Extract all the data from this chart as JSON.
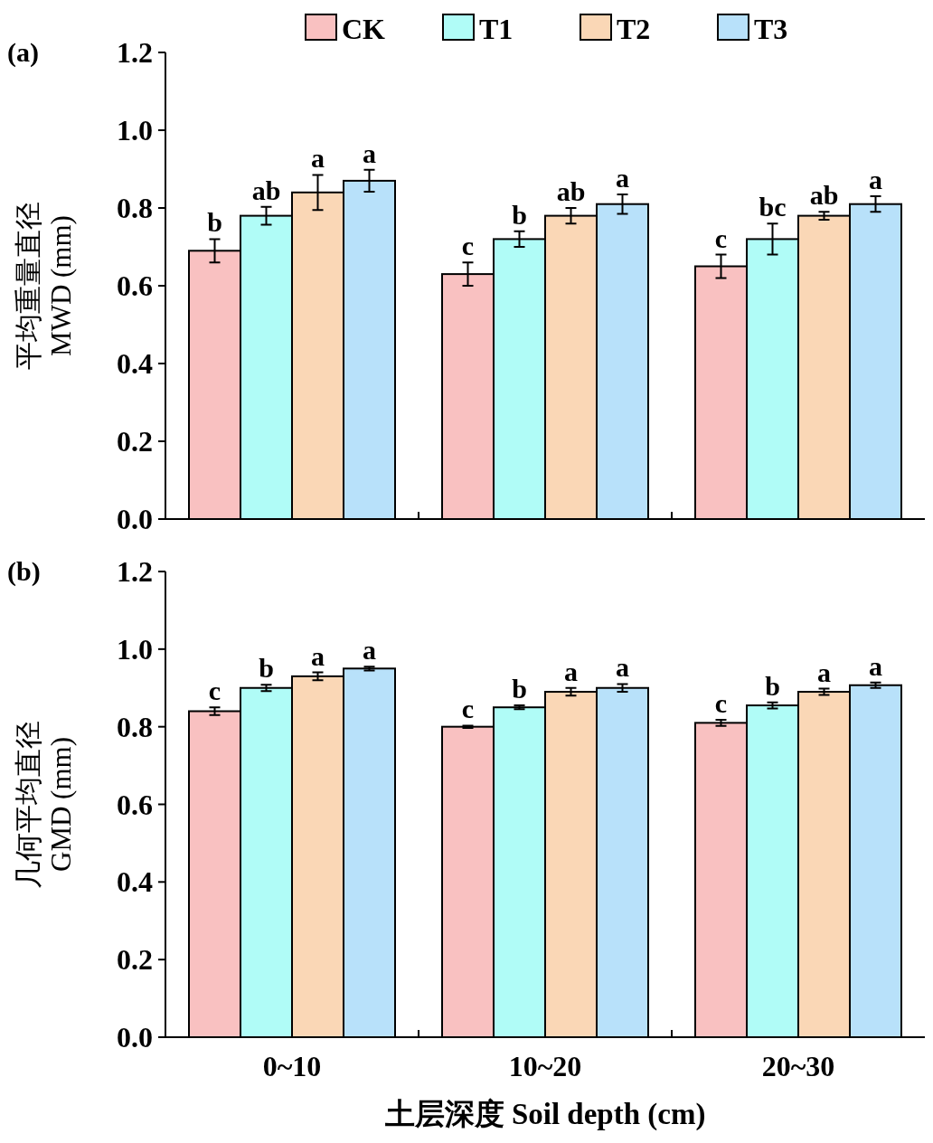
{
  "chart_data": [
    {
      "type": "bar",
      "title": "(a)",
      "ylabel": "平均重量直径 MWD (mm)",
      "ylim": [
        0,
        1.2
      ],
      "yticks": [
        {
          "value": 0,
          "label": "0.0"
        },
        {
          "value": 0.2,
          "label": "0.2"
        },
        {
          "value": 0.4,
          "label": "0.4"
        },
        {
          "value": 0.6,
          "label": "0.6"
        },
        {
          "value": 0.8,
          "label": "0.8"
        },
        {
          "value": 1.0,
          "label": "1.0"
        },
        {
          "value": 1.2,
          "label": "1.2"
        }
      ],
      "legend": "top",
      "tick_labels": "y",
      "series": [
        {
          "name": "CK",
          "color": "#f9c1c1",
          "values": [
            0.69,
            0.63,
            0.65
          ],
          "errors": [
            0.03,
            0.03,
            0.03
          ],
          "value_labels": [
            "b",
            "c",
            "c"
          ]
        },
        {
          "name": "T1",
          "color": "#b0fcf7",
          "values": [
            0.78,
            0.72,
            0.72
          ],
          "errors": [
            0.023,
            0.02,
            0.04
          ],
          "value_labels": [
            "ab",
            "b",
            "bc"
          ]
        },
        {
          "name": "T2",
          "color": "#fad7b6",
          "values": [
            0.84,
            0.78,
            0.78
          ],
          "errors": [
            0.045,
            0.02,
            0.01
          ],
          "value_labels": [
            "a",
            "ab",
            "ab"
          ]
        },
        {
          "name": "T3",
          "color": "#b8e1fa",
          "values": [
            0.87,
            0.81,
            0.81
          ],
          "errors": [
            0.028,
            0.025,
            0.02
          ],
          "value_labels": [
            "a",
            "a",
            "a"
          ]
        }
      ]
    },
    {
      "type": "bar",
      "title": "(b)",
      "ylabel": "几何平均直径 GMD (mm)",
      "xlabel": "土层深度 Soil depth (cm)",
      "categories": [
        "0~10",
        "10~20",
        "20~30"
      ],
      "ylim": [
        0,
        1.2
      ],
      "yticks": [
        {
          "value": 0,
          "label": "0.0"
        },
        {
          "value": 0.2,
          "label": "0.2"
        },
        {
          "value": 0.4,
          "label": "0.4"
        },
        {
          "value": 0.6,
          "label": "0.6"
        },
        {
          "value": 0.8,
          "label": "0.8"
        },
        {
          "value": 1.0,
          "label": "1.0"
        },
        {
          "value": 1.2,
          "label": "1.2"
        }
      ],
      "series": [
        {
          "color": "#f9c1c1",
          "values": [
            0.84,
            0.8,
            0.81
          ],
          "errors": [
            0.01,
            0.003,
            0.008
          ],
          "value_labels": [
            "c",
            "c",
            "c"
          ]
        },
        {
          "color": "#b0fcf7",
          "values": [
            0.9,
            0.85,
            0.855
          ],
          "errors": [
            0.008,
            0.005,
            0.008
          ],
          "value_labels": [
            "b",
            "b",
            "b"
          ]
        },
        {
          "color": "#fad7b6",
          "values": [
            0.93,
            0.89,
            0.89
          ],
          "errors": [
            0.01,
            0.01,
            0.008
          ],
          "value_labels": [
            "a",
            "a",
            "a"
          ]
        },
        {
          "color": "#b8e1fa",
          "values": [
            0.95,
            0.9,
            0.907
          ],
          "errors": [
            0.005,
            0.01,
            0.007
          ],
          "value_labels": [
            "a",
            "a",
            "a"
          ]
        }
      ]
    }
  ]
}
